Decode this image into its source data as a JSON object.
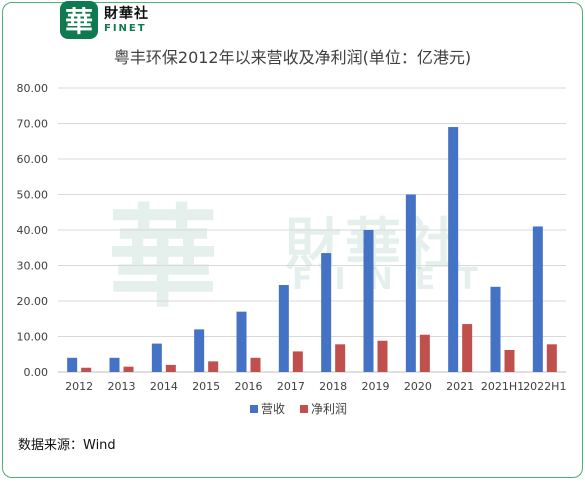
{
  "brand": {
    "logo_char": "華",
    "name_cn": "財華社",
    "name_en": "FINET"
  },
  "watermark": {
    "char": "華",
    "name_cn": "財華社",
    "name_en": "FINET"
  },
  "colors": {
    "revenue": "#4472c4",
    "profit": "#c0504d",
    "frame": "#4caf73",
    "brand": "#0f7a4f"
  },
  "footer": {
    "source": "数据来源：Wind"
  },
  "chart_data": {
    "type": "bar",
    "title": "粤丰环保2012年以来营收及净利润(单位：亿港元)",
    "categories": [
      "2012",
      "2013",
      "2014",
      "2015",
      "2016",
      "2017",
      "2018",
      "2019",
      "2020",
      "2021",
      "2021H1",
      "2022H1"
    ],
    "series": [
      {
        "name": "营收",
        "values": [
          4.0,
          4.0,
          8.0,
          12.0,
          17.0,
          24.5,
          33.5,
          40.0,
          50.0,
          69.0,
          24.0,
          41.0
        ]
      },
      {
        "name": "净利润",
        "values": [
          1.2,
          1.5,
          2.0,
          3.0,
          4.0,
          5.8,
          7.8,
          8.8,
          10.5,
          13.5,
          6.2,
          7.8
        ]
      }
    ],
    "yticks": [
      "0.00",
      "10.00",
      "20.00",
      "30.00",
      "40.00",
      "50.00",
      "60.00",
      "70.00",
      "80.00"
    ],
    "ylim": [
      0,
      80
    ],
    "xlabel": "",
    "ylabel": "",
    "grid": true,
    "legend": "bottom"
  }
}
